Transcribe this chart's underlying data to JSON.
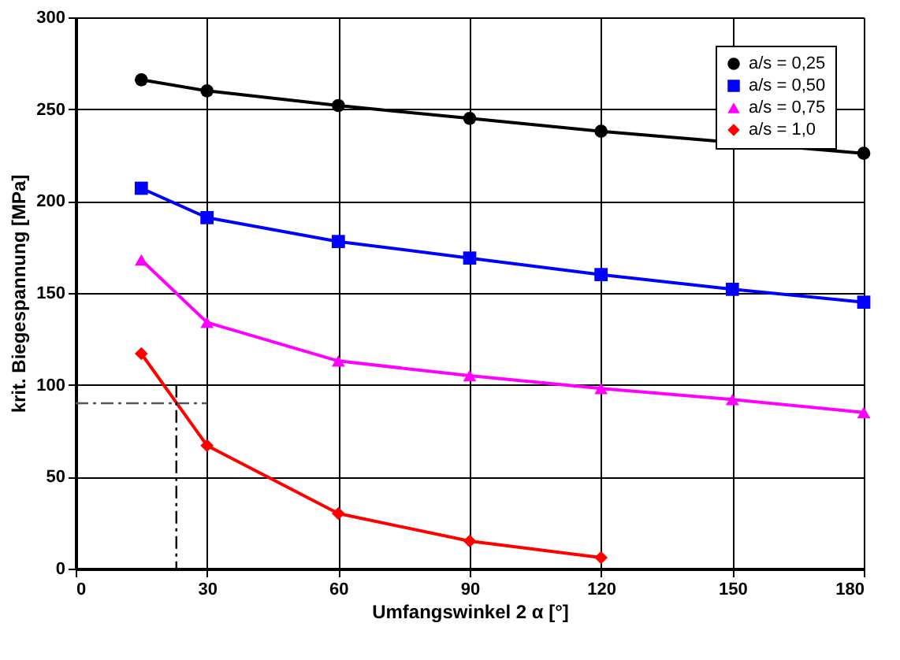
{
  "chart_data": {
    "type": "line",
    "xlabel": "Umfangswinkel 2 α [°]",
    "ylabel": "krit. Biegespannung [MPa]",
    "xlim": [
      0,
      180
    ],
    "xticks": [
      0,
      30,
      60,
      90,
      120,
      150,
      180
    ],
    "ylim": [
      0,
      300
    ],
    "yticks": [
      0,
      50,
      100,
      150,
      200,
      250,
      300
    ],
    "grid": true,
    "legend": "top right",
    "series": [
      {
        "name": "a/s = 0,25",
        "color": "#000000",
        "marker": "circle",
        "x": [
          15,
          30,
          60,
          90,
          120,
          150,
          180
        ],
        "values": [
          266,
          260,
          252,
          245,
          238,
          232,
          226
        ]
      },
      {
        "name": "a/s = 0,50",
        "color": "#0000ff",
        "marker": "square",
        "x": [
          15,
          30,
          60,
          90,
          120,
          150,
          180
        ],
        "values": [
          207,
          191,
          178,
          169,
          160,
          152,
          145
        ]
      },
      {
        "name": "a/s = 0,75",
        "color": "#ff00ff",
        "marker": "triangle",
        "x": [
          15,
          30,
          60,
          90,
          120,
          150,
          180
        ],
        "values": [
          168,
          134,
          113,
          105,
          98,
          92,
          85
        ]
      },
      {
        "name": "a/s = 1,0",
        "color": "#ff0000",
        "marker": "diamond",
        "x": [
          15,
          30,
          60,
          90,
          120
        ],
        "values": [
          117,
          67,
          30,
          15,
          6
        ]
      },
      {
        "color": "#555555",
        "marker": "none",
        "line_style": "dashed",
        "x": [
          0,
          30
        ],
        "values": [
          90,
          90
        ]
      },
      {
        "color": "#000000",
        "marker": "none",
        "line_style": "dashed",
        "x": [
          23,
          23
        ],
        "values": [
          100,
          0
        ]
      }
    ]
  }
}
